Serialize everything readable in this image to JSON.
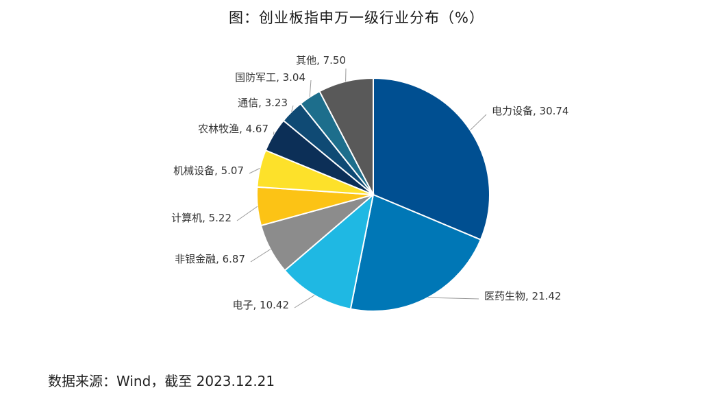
{
  "chart_data": {
    "type": "pie",
    "title": "图：创业板指申万一级行业分布（%）",
    "start_angle_deg": 0,
    "direction": "clockwise",
    "slices": [
      {
        "label": "电力设备",
        "value": 30.74,
        "display": "30.74",
        "color": "#004f91"
      },
      {
        "label": "医药生物",
        "value": 21.42,
        "display": "21.42",
        "color": "#0077b6"
      },
      {
        "label": "电子",
        "value": 10.42,
        "display": "10.42",
        "color": "#1fb8e3"
      },
      {
        "label": "非银金融",
        "value": 6.87,
        "display": "6.87",
        "color": "#8c8c8c"
      },
      {
        "label": "计算机",
        "value": 5.22,
        "display": "5.22",
        "color": "#fcc315"
      },
      {
        "label": "机械设备",
        "value": 5.07,
        "display": "5.07",
        "color": "#fde12a"
      },
      {
        "label": "农林牧渔",
        "value": 4.67,
        "display": "4.67",
        "color": "#0c2f57"
      },
      {
        "label": "通信",
        "value": 3.23,
        "display": "3.23",
        "color": "#0f4a74"
      },
      {
        "label": "国防军工",
        "value": 3.04,
        "display": "3.04",
        "color": "#1d6e8c"
      },
      {
        "label": "其他",
        "value": 7.5,
        "display": "7.50",
        "color": "#595959"
      }
    ]
  },
  "source": "数据来源：Wind，截至 2023.12.21"
}
